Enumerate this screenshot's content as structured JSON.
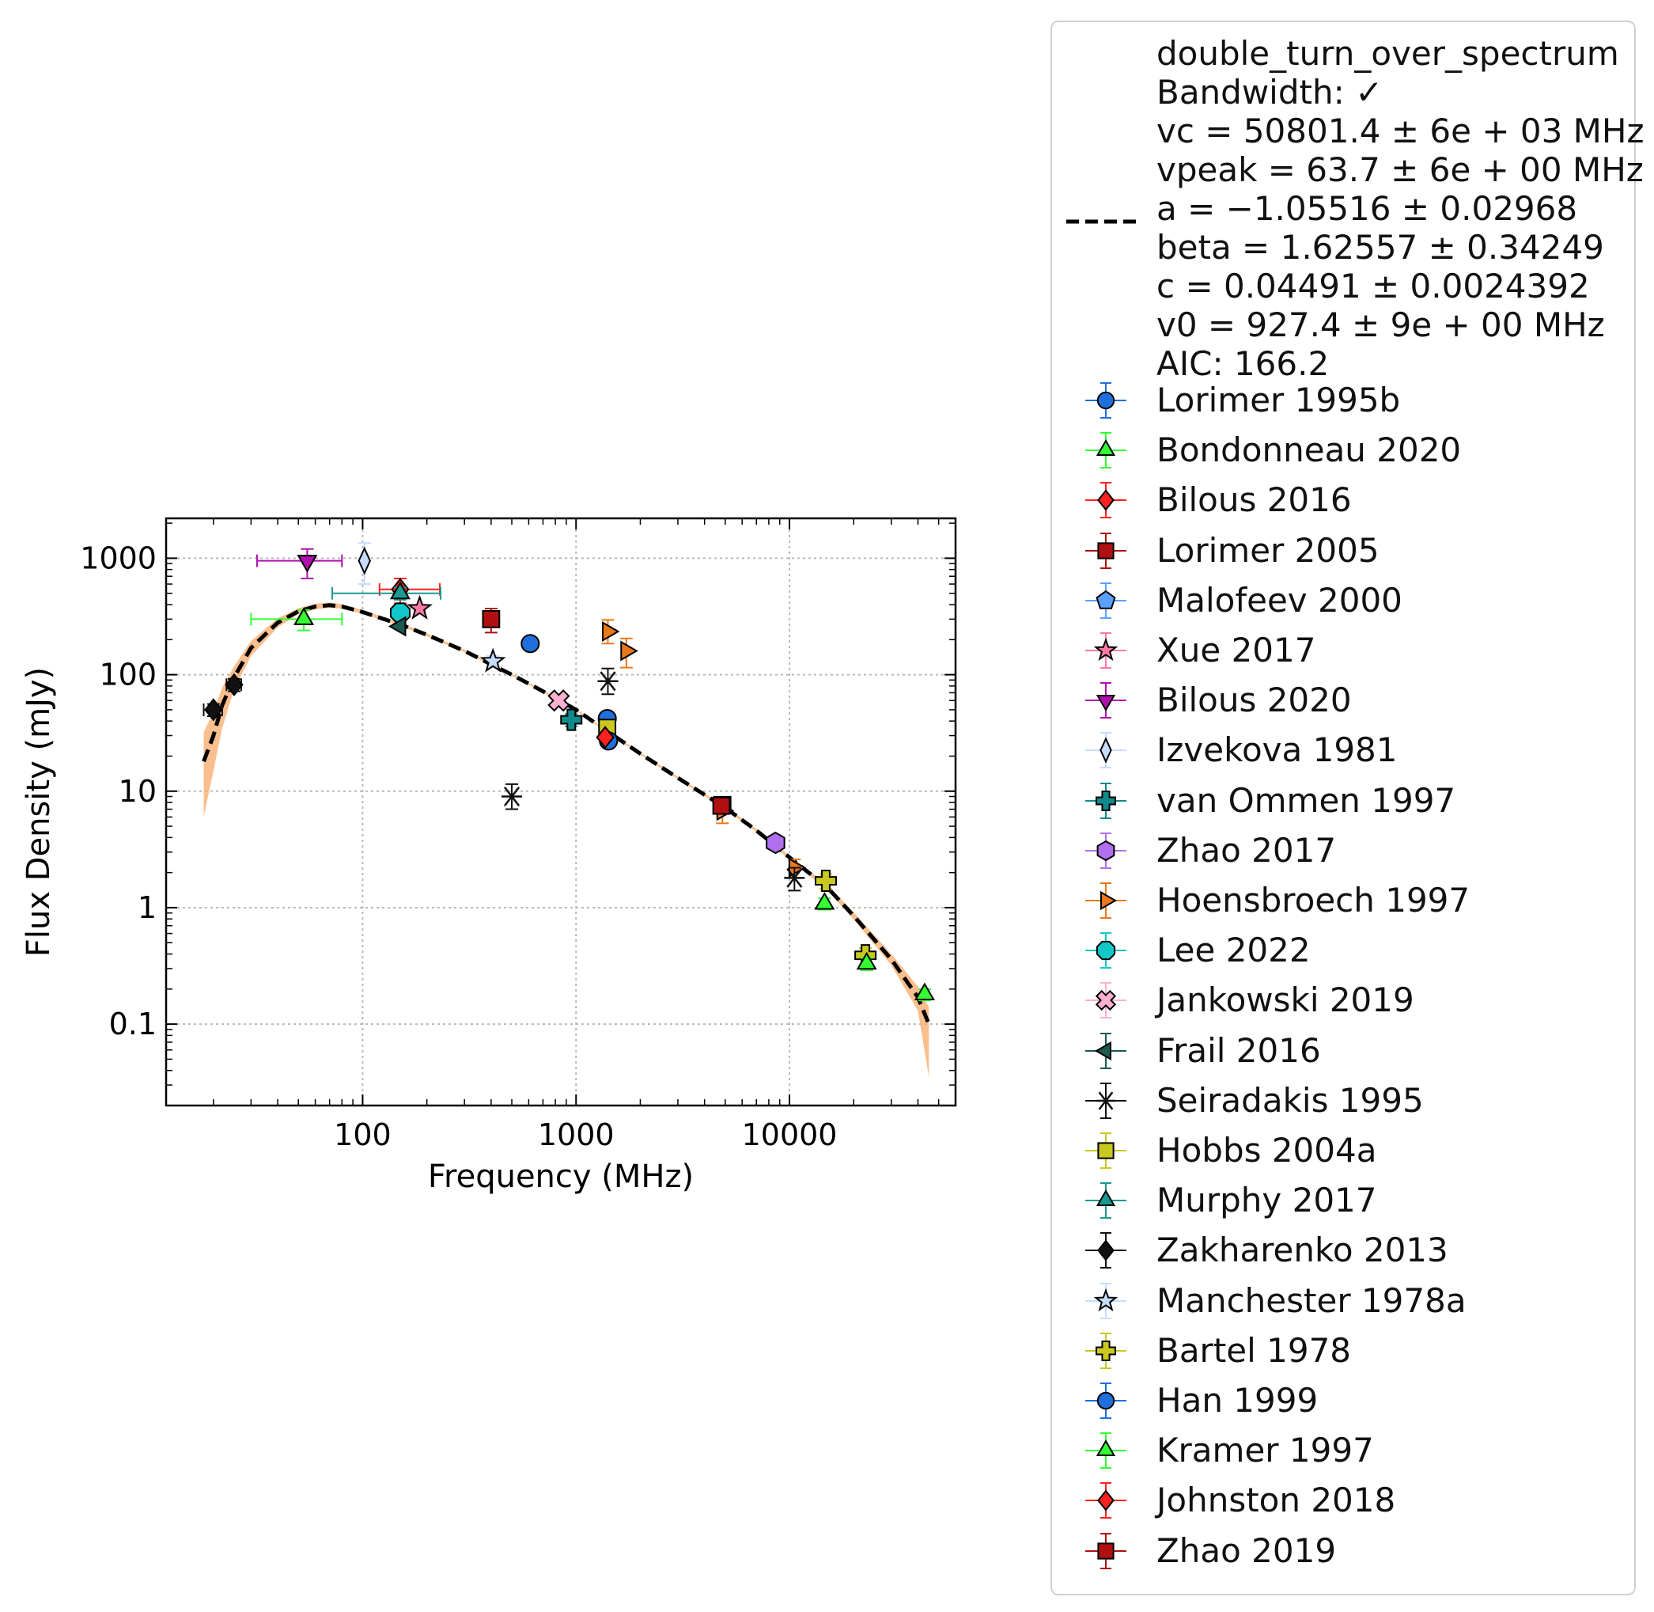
{
  "chart_data": {
    "type": "scatter",
    "xlabel": "Frequency (MHz)",
    "ylabel": "Flux Density (mJy)",
    "xscale": "log",
    "yscale": "log",
    "xlim": [
      12,
      60000
    ],
    "ylim": [
      0.02,
      2200
    ],
    "xticks": [
      100,
      1000,
      10000
    ],
    "xtick_labels": [
      "100",
      "1000",
      "10000"
    ],
    "yticks": [
      0.1,
      1,
      10,
      100,
      1000
    ],
    "ytick_labels": [
      "0.1",
      "1",
      "10",
      "100",
      "1000"
    ],
    "grid": true,
    "legend_placement": "outside right",
    "fit": {
      "label_lines": [
        "double_turn_over_spectrum",
        "Bandwidth: ✓",
        "vc = 50801.4 ± 6e + 03 MHz",
        "vpeak = 63.7 ± 6e + 00 MHz",
        "a = −1.05516 ± 0.02968",
        "beta = 1.62557 ± 0.34249",
        "c = 0.04491 ± 0.0024392",
        "v0 = 927.4 ± 9e + 00 MHz",
        "AIC: 166.2"
      ],
      "line_color": "#000000",
      "band_color": "#f8a968",
      "curve": [
        [
          18,
          18
        ],
        [
          20,
          30
        ],
        [
          22,
          55
        ],
        [
          25,
          95
        ],
        [
          30,
          170
        ],
        [
          40,
          280
        ],
        [
          50,
          350
        ],
        [
          60,
          385
        ],
        [
          70,
          395
        ],
        [
          80,
          385
        ],
        [
          100,
          345
        ],
        [
          150,
          270
        ],
        [
          200,
          220
        ],
        [
          300,
          160
        ],
        [
          500,
          100
        ],
        [
          700,
          72
        ],
        [
          1000,
          50
        ],
        [
          1500,
          30
        ],
        [
          2000,
          21
        ],
        [
          3000,
          13
        ],
        [
          5000,
          7.2
        ],
        [
          7000,
          4.6
        ],
        [
          10000,
          2.7
        ],
        [
          15000,
          1.5
        ],
        [
          20000,
          0.85
        ],
        [
          30000,
          0.36
        ],
        [
          40000,
          0.17
        ],
        [
          45000,
          0.1
        ]
      ],
      "band_lower": [
        [
          18,
          6
        ],
        [
          20,
          15
        ],
        [
          22,
          35
        ],
        [
          25,
          75
        ],
        [
          30,
          145
        ],
        [
          40,
          255
        ],
        [
          50,
          330
        ],
        [
          60,
          365
        ],
        [
          70,
          375
        ],
        [
          80,
          368
        ],
        [
          100,
          333
        ],
        [
          150,
          262
        ],
        [
          200,
          214
        ],
        [
          300,
          156
        ],
        [
          500,
          98
        ],
        [
          700,
          70.5
        ],
        [
          1000,
          49
        ],
        [
          1500,
          29.4
        ],
        [
          2000,
          20.5
        ],
        [
          3000,
          12.7
        ],
        [
          5000,
          7.0
        ],
        [
          7000,
          4.45
        ],
        [
          10000,
          2.6
        ],
        [
          15000,
          1.42
        ],
        [
          20000,
          0.79
        ],
        [
          30000,
          0.32
        ],
        [
          40000,
          0.13
        ],
        [
          45000,
          0.035
        ]
      ],
      "band_upper": [
        [
          18,
          32
        ],
        [
          20,
          48
        ],
        [
          22,
          78
        ],
        [
          25,
          118
        ],
        [
          30,
          195
        ],
        [
          40,
          305
        ],
        [
          50,
          372
        ],
        [
          60,
          407
        ],
        [
          70,
          417
        ],
        [
          80,
          404
        ],
        [
          100,
          358
        ],
        [
          150,
          279
        ],
        [
          200,
          226
        ],
        [
          300,
          164
        ],
        [
          500,
          102
        ],
        [
          700,
          73.5
        ],
        [
          1000,
          51
        ],
        [
          1500,
          30.6
        ],
        [
          2000,
          21.5
        ],
        [
          3000,
          13.3
        ],
        [
          5000,
          7.4
        ],
        [
          7000,
          4.75
        ],
        [
          10000,
          2.8
        ],
        [
          15000,
          1.58
        ],
        [
          20000,
          0.91
        ],
        [
          30000,
          0.4
        ],
        [
          40000,
          0.21
        ],
        [
          45000,
          0.14
        ]
      ]
    },
    "series": [
      {
        "name": "Lorimer 1995b",
        "marker": "circle",
        "color": "#1f6fdd",
        "points": [
          {
            "x": 1400,
            "y": 42,
            "yerr": [
              2,
              2
            ]
          }
        ]
      },
      {
        "name": "Bondonneau 2020",
        "marker": "triangle-up",
        "color": "#33ff33",
        "points": [
          {
            "x": 53,
            "y": 300,
            "xerr": [
              23,
              27
            ],
            "yerr": [
              60,
              60
            ]
          }
        ]
      },
      {
        "name": "Bilous 2016",
        "marker": "diamond",
        "color": "#ff2020",
        "points": [
          {
            "x": 150,
            "y": 540,
            "xerr": [
              30,
              80
            ],
            "yerr": [
              130,
              130
            ]
          }
        ]
      },
      {
        "name": "Lorimer 2005",
        "marker": "square",
        "color": "#b01010",
        "points": [
          {
            "x": 400,
            "y": 300,
            "yerr": [
              70,
              70
            ]
          },
          {
            "x": 4850,
            "y": 7.6,
            "yerr": [
              1,
              1
            ]
          }
        ]
      },
      {
        "name": "Malofeev 2000",
        "marker": "pentagon",
        "color": "#5aa0ff",
        "points": []
      },
      {
        "name": "Xue 2017",
        "marker": "star",
        "color": "#ff7aa8",
        "points": [
          {
            "x": 185,
            "y": 370,
            "yerr": [
              20,
              20
            ]
          }
        ]
      },
      {
        "name": "Bilous 2020",
        "marker": "triangle-down",
        "color": "#b010b0",
        "points": [
          {
            "x": 55,
            "y": 950,
            "xerr": [
              23,
              25
            ],
            "yerr": [
              280,
              250
            ]
          }
        ]
      },
      {
        "name": "Izvekova 1981",
        "marker": "thin-diamond",
        "color": "#c8dcff",
        "points": [
          {
            "x": 102,
            "y": 950,
            "yerr": [
              350,
              400
            ]
          }
        ]
      },
      {
        "name": "van Ommen 1997",
        "marker": "plus",
        "color": "#108a8a",
        "points": [
          {
            "x": 950,
            "y": 41,
            "yerr": [
              5,
              5
            ]
          }
        ]
      },
      {
        "name": "Zhao 2017",
        "marker": "hexagon",
        "color": "#b070ee",
        "points": [
          {
            "x": 8600,
            "y": 3.6,
            "yerr": [
              0.3,
              0.3
            ]
          }
        ]
      },
      {
        "name": "Hoensbroech 1997",
        "marker": "triangle-right",
        "color": "#e8781a",
        "points": [
          {
            "x": 1410,
            "y": 235,
            "yerr": [
              50,
              60
            ]
          },
          {
            "x": 1720,
            "y": 160,
            "yerr": [
              45,
              45
            ]
          },
          {
            "x": 4850,
            "y": 6.8,
            "yerr": [
              1.5,
              1.5
            ]
          },
          {
            "x": 10550,
            "y": 2.2,
            "yerr": [
              0.4,
              0.4
            ]
          }
        ]
      },
      {
        "name": "Lee 2022",
        "marker": "octagon",
        "color": "#10c8c8",
        "points": [
          {
            "x": 150,
            "y": 340,
            "yerr": [
              30,
              30
            ]
          }
        ]
      },
      {
        "name": "Jankowski 2019",
        "marker": "x-filled",
        "color": "#ffb0d0",
        "points": [
          {
            "x": 830,
            "y": 60,
            "yerr": [
              5,
              5
            ]
          }
        ]
      },
      {
        "name": "Frail 2016",
        "marker": "triangle-left",
        "color": "#1a5a50",
        "points": [
          {
            "x": 150,
            "y": 260,
            "yerr": [
              10,
              10
            ]
          }
        ]
      },
      {
        "name": "Seiradakis 1995",
        "marker": "asterisk",
        "color": "#111111",
        "points": [
          {
            "x": 500,
            "y": 9,
            "yerr": [
              2,
              2.5
            ]
          },
          {
            "x": 1410,
            "y": 88,
            "yerr": [
              20,
              25
            ]
          },
          {
            "x": 10550,
            "y": 1.8,
            "yerr": [
              0.4,
              0.4
            ]
          }
        ]
      },
      {
        "name": "Hobbs 2004a",
        "marker": "square",
        "color": "#c8c820",
        "points": [
          {
            "x": 1400,
            "y": 35,
            "yerr": [
              3,
              3
            ]
          }
        ]
      },
      {
        "name": "Murphy 2017",
        "marker": "triangle-up",
        "color": "#1a9a90",
        "points": [
          {
            "x": 150,
            "y": 500,
            "xerr": [
              78,
              82
            ],
            "yerr": [
              60,
              60
            ]
          }
        ]
      },
      {
        "name": "Zakharenko 2013",
        "marker": "diamond",
        "color": "#111111",
        "points": [
          {
            "x": 20,
            "y": 50,
            "xerr": [
              2,
              2
            ],
            "yerr": [
              6,
              6
            ]
          },
          {
            "x": 25,
            "y": 82,
            "xerr": [
              2,
              2
            ],
            "yerr": [
              10,
              10
            ]
          }
        ]
      },
      {
        "name": "Manchester 1978a",
        "marker": "star",
        "color": "#c8dcff",
        "points": [
          {
            "x": 408,
            "y": 130,
            "yerr": [
              15,
              15
            ]
          }
        ]
      },
      {
        "name": "Bartel 1978",
        "marker": "plus",
        "color": "#c8c820",
        "points": [
          {
            "x": 14800,
            "y": 1.7,
            "yerr": [
              0.25,
              0.25
            ]
          },
          {
            "x": 22700,
            "y": 0.39,
            "yerr": [
              0.06,
              0.06
            ]
          }
        ]
      },
      {
        "name": "Han 1999",
        "marker": "circle",
        "color": "#1f6fdd",
        "points": [
          {
            "x": 610,
            "y": 185,
            "yerr": [
              8,
              8
            ]
          },
          {
            "x": 1420,
            "y": 27,
            "yerr": [
              2,
              2
            ]
          }
        ]
      },
      {
        "name": "Kramer 1997",
        "marker": "triangle-up",
        "color": "#33ff33",
        "points": [
          {
            "x": 14600,
            "y": 1.08,
            "yerr": [
              0.12,
              0.12
            ]
          },
          {
            "x": 23000,
            "y": 0.33,
            "yerr": [
              0.04,
              0.04
            ]
          },
          {
            "x": 43000,
            "y": 0.18,
            "yerr": [
              0.02,
              0.02
            ]
          }
        ]
      },
      {
        "name": "Johnston 2018",
        "marker": "diamond",
        "color": "#ff2020",
        "points": [
          {
            "x": 1370,
            "y": 29,
            "yerr": [
              2,
              2
            ]
          }
        ]
      },
      {
        "name": "Zhao 2019",
        "marker": "square",
        "color": "#b01010",
        "points": [
          {
            "x": 4800,
            "y": 7.5,
            "yerr": [
              0.6,
              0.6
            ]
          }
        ]
      }
    ]
  }
}
